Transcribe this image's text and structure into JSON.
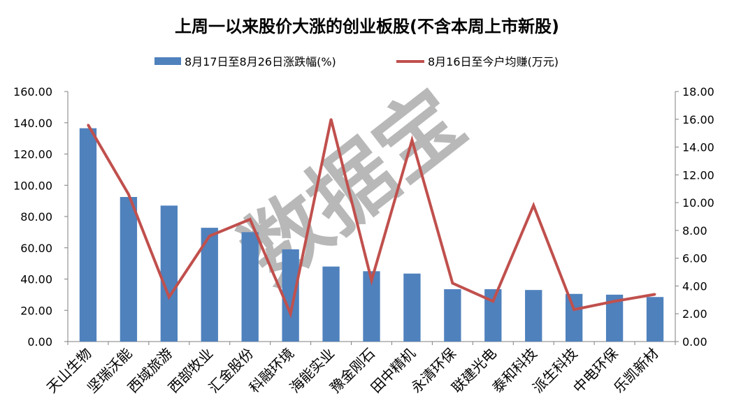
{
  "chart_data": {
    "type": "bar+line",
    "title": "上周一以来股价大涨的创业板股(不含本周上市新股)",
    "legend_position": "top",
    "grid": false,
    "watermark": "数据宝",
    "categories": [
      "天山生物",
      "坚瑞沃能",
      "西域旅游",
      "西部牧业",
      "汇金股份",
      "科融环境",
      "海能实业",
      "豫金刚石",
      "田中精机",
      "永清环保",
      "联建光电",
      "泰和科技",
      "派生科技",
      "中电环保",
      "乐凯新材"
    ],
    "series": [
      {
        "name": "8月17日至8月26日涨跌幅(%)",
        "type": "bar",
        "axis": "left",
        "color": "#4f81bd",
        "values": [
          136.5,
          92.5,
          87.0,
          72.8,
          70.0,
          59.0,
          48.0,
          45.0,
          43.5,
          33.5,
          33.5,
          33.0,
          30.5,
          30.0,
          28.5
        ]
      },
      {
        "name": "8月16日至今户均赚(万元)",
        "type": "line",
        "axis": "right",
        "color": "#c0504d",
        "values": [
          15.6,
          10.6,
          3.2,
          7.6,
          8.8,
          2.0,
          16.0,
          4.4,
          14.5,
          4.2,
          2.9,
          9.8,
          2.3,
          2.9,
          3.4
        ]
      }
    ],
    "y_left": {
      "min": 0,
      "max": 160,
      "step": 20,
      "tick_labels": [
        "0.00",
        "20.00",
        "40.00",
        "60.00",
        "80.00",
        "100.00",
        "120.00",
        "140.00",
        "160.00"
      ]
    },
    "y_right": {
      "min": 0,
      "max": 18,
      "step": 2,
      "tick_labels": [
        "0.00",
        "2.00",
        "4.00",
        "6.00",
        "8.00",
        "10.00",
        "12.00",
        "14.00",
        "16.00",
        "18.00"
      ]
    }
  }
}
